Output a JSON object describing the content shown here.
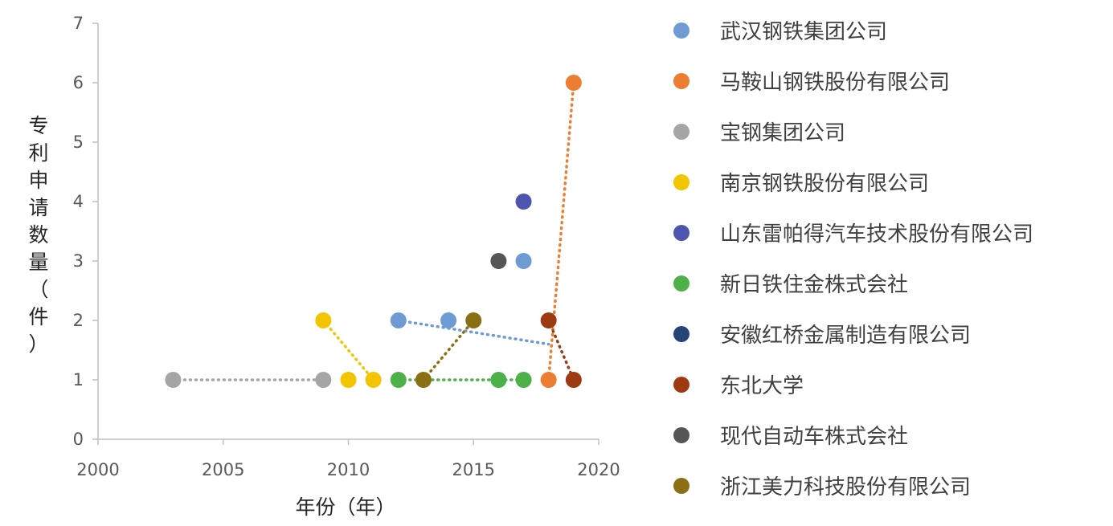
{
  "chart_data": {
    "type": "scatter",
    "xlabel": "年份（年）",
    "ylabel": "专利申请数量（件）",
    "xlim": [
      2000,
      2020
    ],
    "ylim": [
      0,
      7
    ],
    "xticks": [
      2000,
      2005,
      2010,
      2015,
      2020
    ],
    "yticks": [
      0,
      1,
      2,
      3,
      4,
      5,
      6,
      7
    ],
    "grid": false,
    "legend_position": "right",
    "series": [
      {
        "name": "武汉钢铁集团公司",
        "color": "#6e9bd4",
        "trend": [
          [
            2012,
            2.0
          ],
          [
            2018,
            1.6
          ]
        ],
        "points": [
          [
            2012,
            2
          ],
          [
            2014,
            2
          ],
          [
            2017,
            3
          ]
        ]
      },
      {
        "name": "马鞍山钢铁股份有限公司",
        "color": "#ed7d31",
        "trend": [
          [
            2018,
            1.0
          ],
          [
            2019,
            6.0
          ]
        ],
        "points": [
          [
            2018,
            1
          ],
          [
            2019,
            6
          ]
        ]
      },
      {
        "name": "宝钢集团公司",
        "color": "#a5a5a5",
        "trend": [
          [
            2003,
            1.0
          ],
          [
            2009,
            1.0
          ]
        ],
        "points": [
          [
            2003,
            1
          ],
          [
            2009,
            1
          ]
        ]
      },
      {
        "name": "南京钢铁股份有限公司",
        "color": "#f2c500",
        "trend": [
          [
            2009,
            2.0
          ],
          [
            2011,
            1.0
          ]
        ],
        "points": [
          [
            2009,
            2
          ],
          [
            2010,
            1
          ],
          [
            2011,
            1
          ]
        ]
      },
      {
        "name": "山东雷帕得汽车技术股份有限公司",
        "color": "#4d55b0",
        "trend": null,
        "points": [
          [
            2017,
            4
          ]
        ]
      },
      {
        "name": "新日铁住金株式会社",
        "color": "#4db14a",
        "trend": [
          [
            2012,
            1.0
          ],
          [
            2017,
            1.0
          ]
        ],
        "points": [
          [
            2012,
            1
          ],
          [
            2016,
            1
          ],
          [
            2017,
            1
          ]
        ]
      },
      {
        "name": "安徽红桥金属制造有限公司",
        "color": "#264478",
        "trend": null,
        "points": []
      },
      {
        "name": "东北大学",
        "color": "#9e3a11",
        "trend": [
          [
            2018,
            2.0
          ],
          [
            2019,
            1.0
          ]
        ],
        "points": [
          [
            2018,
            2
          ],
          [
            2019,
            1
          ]
        ]
      },
      {
        "name": "现代自动车株式会社",
        "color": "#555555",
        "trend": null,
        "points": [
          [
            2016,
            3
          ]
        ]
      },
      {
        "name": "浙江美力科技股份有限公司",
        "color": "#8a7012",
        "trend": [
          [
            2013,
            1.0
          ],
          [
            2015,
            2.0
          ]
        ],
        "points": [
          [
            2013,
            1
          ],
          [
            2015,
            2
          ]
        ]
      }
    ]
  }
}
